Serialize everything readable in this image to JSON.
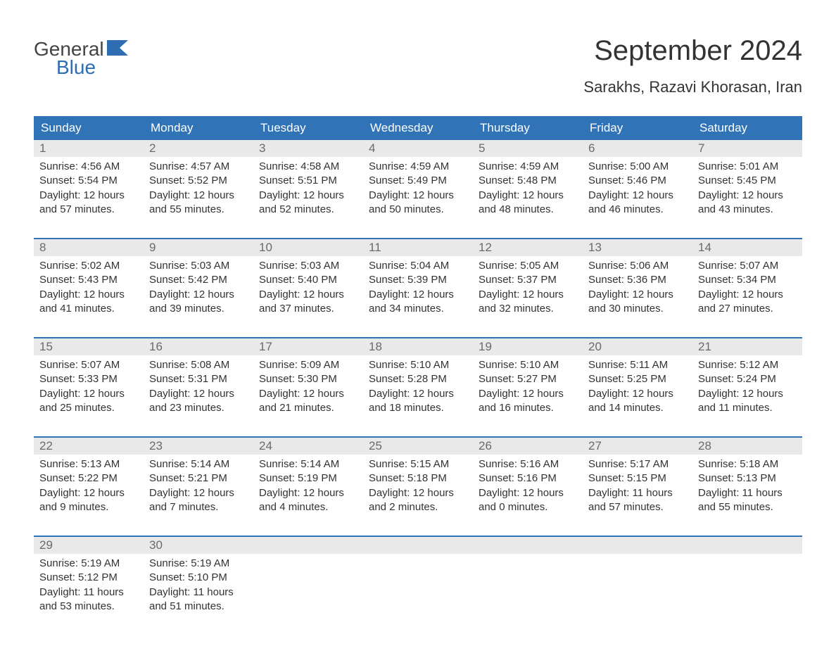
{
  "logo": {
    "top": "General",
    "bottom": "Blue",
    "top_color": "#444444",
    "bottom_color": "#2f6db2",
    "flag_color": "#2f6db2"
  },
  "title": "September 2024",
  "location": "Sarakhs, Razavi Khorasan, Iran",
  "colors": {
    "header_bg": "#3173b7",
    "header_text": "#ffffff",
    "date_bg": "#e9e9e9",
    "date_text": "#6a6a6a",
    "rule": "#3173b7",
    "body_text": "#333333",
    "background": "#ffffff"
  },
  "typography": {
    "title_fontsize": 40,
    "location_fontsize": 22,
    "dayheader_fontsize": 17,
    "date_fontsize": 17,
    "cell_fontsize": 15,
    "font_family": "Arial"
  },
  "day_names": [
    "Sunday",
    "Monday",
    "Tuesday",
    "Wednesday",
    "Thursday",
    "Friday",
    "Saturday"
  ],
  "weeks": [
    [
      {
        "date": "1",
        "sunrise": "Sunrise: 4:56 AM",
        "sunset": "Sunset: 5:54 PM",
        "daylight1": "Daylight: 12 hours",
        "daylight2": "and 57 minutes."
      },
      {
        "date": "2",
        "sunrise": "Sunrise: 4:57 AM",
        "sunset": "Sunset: 5:52 PM",
        "daylight1": "Daylight: 12 hours",
        "daylight2": "and 55 minutes."
      },
      {
        "date": "3",
        "sunrise": "Sunrise: 4:58 AM",
        "sunset": "Sunset: 5:51 PM",
        "daylight1": "Daylight: 12 hours",
        "daylight2": "and 52 minutes."
      },
      {
        "date": "4",
        "sunrise": "Sunrise: 4:59 AM",
        "sunset": "Sunset: 5:49 PM",
        "daylight1": "Daylight: 12 hours",
        "daylight2": "and 50 minutes."
      },
      {
        "date": "5",
        "sunrise": "Sunrise: 4:59 AM",
        "sunset": "Sunset: 5:48 PM",
        "daylight1": "Daylight: 12 hours",
        "daylight2": "and 48 minutes."
      },
      {
        "date": "6",
        "sunrise": "Sunrise: 5:00 AM",
        "sunset": "Sunset: 5:46 PM",
        "daylight1": "Daylight: 12 hours",
        "daylight2": "and 46 minutes."
      },
      {
        "date": "7",
        "sunrise": "Sunrise: 5:01 AM",
        "sunset": "Sunset: 5:45 PM",
        "daylight1": "Daylight: 12 hours",
        "daylight2": "and 43 minutes."
      }
    ],
    [
      {
        "date": "8",
        "sunrise": "Sunrise: 5:02 AM",
        "sunset": "Sunset: 5:43 PM",
        "daylight1": "Daylight: 12 hours",
        "daylight2": "and 41 minutes."
      },
      {
        "date": "9",
        "sunrise": "Sunrise: 5:03 AM",
        "sunset": "Sunset: 5:42 PM",
        "daylight1": "Daylight: 12 hours",
        "daylight2": "and 39 minutes."
      },
      {
        "date": "10",
        "sunrise": "Sunrise: 5:03 AM",
        "sunset": "Sunset: 5:40 PM",
        "daylight1": "Daylight: 12 hours",
        "daylight2": "and 37 minutes."
      },
      {
        "date": "11",
        "sunrise": "Sunrise: 5:04 AM",
        "sunset": "Sunset: 5:39 PM",
        "daylight1": "Daylight: 12 hours",
        "daylight2": "and 34 minutes."
      },
      {
        "date": "12",
        "sunrise": "Sunrise: 5:05 AM",
        "sunset": "Sunset: 5:37 PM",
        "daylight1": "Daylight: 12 hours",
        "daylight2": "and 32 minutes."
      },
      {
        "date": "13",
        "sunrise": "Sunrise: 5:06 AM",
        "sunset": "Sunset: 5:36 PM",
        "daylight1": "Daylight: 12 hours",
        "daylight2": "and 30 minutes."
      },
      {
        "date": "14",
        "sunrise": "Sunrise: 5:07 AM",
        "sunset": "Sunset: 5:34 PM",
        "daylight1": "Daylight: 12 hours",
        "daylight2": "and 27 minutes."
      }
    ],
    [
      {
        "date": "15",
        "sunrise": "Sunrise: 5:07 AM",
        "sunset": "Sunset: 5:33 PM",
        "daylight1": "Daylight: 12 hours",
        "daylight2": "and 25 minutes."
      },
      {
        "date": "16",
        "sunrise": "Sunrise: 5:08 AM",
        "sunset": "Sunset: 5:31 PM",
        "daylight1": "Daylight: 12 hours",
        "daylight2": "and 23 minutes."
      },
      {
        "date": "17",
        "sunrise": "Sunrise: 5:09 AM",
        "sunset": "Sunset: 5:30 PM",
        "daylight1": "Daylight: 12 hours",
        "daylight2": "and 21 minutes."
      },
      {
        "date": "18",
        "sunrise": "Sunrise: 5:10 AM",
        "sunset": "Sunset: 5:28 PM",
        "daylight1": "Daylight: 12 hours",
        "daylight2": "and 18 minutes."
      },
      {
        "date": "19",
        "sunrise": "Sunrise: 5:10 AM",
        "sunset": "Sunset: 5:27 PM",
        "daylight1": "Daylight: 12 hours",
        "daylight2": "and 16 minutes."
      },
      {
        "date": "20",
        "sunrise": "Sunrise: 5:11 AM",
        "sunset": "Sunset: 5:25 PM",
        "daylight1": "Daylight: 12 hours",
        "daylight2": "and 14 minutes."
      },
      {
        "date": "21",
        "sunrise": "Sunrise: 5:12 AM",
        "sunset": "Sunset: 5:24 PM",
        "daylight1": "Daylight: 12 hours",
        "daylight2": "and 11 minutes."
      }
    ],
    [
      {
        "date": "22",
        "sunrise": "Sunrise: 5:13 AM",
        "sunset": "Sunset: 5:22 PM",
        "daylight1": "Daylight: 12 hours",
        "daylight2": "and 9 minutes."
      },
      {
        "date": "23",
        "sunrise": "Sunrise: 5:14 AM",
        "sunset": "Sunset: 5:21 PM",
        "daylight1": "Daylight: 12 hours",
        "daylight2": "and 7 minutes."
      },
      {
        "date": "24",
        "sunrise": "Sunrise: 5:14 AM",
        "sunset": "Sunset: 5:19 PM",
        "daylight1": "Daylight: 12 hours",
        "daylight2": "and 4 minutes."
      },
      {
        "date": "25",
        "sunrise": "Sunrise: 5:15 AM",
        "sunset": "Sunset: 5:18 PM",
        "daylight1": "Daylight: 12 hours",
        "daylight2": "and 2 minutes."
      },
      {
        "date": "26",
        "sunrise": "Sunrise: 5:16 AM",
        "sunset": "Sunset: 5:16 PM",
        "daylight1": "Daylight: 12 hours",
        "daylight2": "and 0 minutes."
      },
      {
        "date": "27",
        "sunrise": "Sunrise: 5:17 AM",
        "sunset": "Sunset: 5:15 PM",
        "daylight1": "Daylight: 11 hours",
        "daylight2": "and 57 minutes."
      },
      {
        "date": "28",
        "sunrise": "Sunrise: 5:18 AM",
        "sunset": "Sunset: 5:13 PM",
        "daylight1": "Daylight: 11 hours",
        "daylight2": "and 55 minutes."
      }
    ],
    [
      {
        "date": "29",
        "sunrise": "Sunrise: 5:19 AM",
        "sunset": "Sunset: 5:12 PM",
        "daylight1": "Daylight: 11 hours",
        "daylight2": "and 53 minutes."
      },
      {
        "date": "30",
        "sunrise": "Sunrise: 5:19 AM",
        "sunset": "Sunset: 5:10 PM",
        "daylight1": "Daylight: 11 hours",
        "daylight2": "and 51 minutes."
      },
      {
        "date": "",
        "sunrise": "",
        "sunset": "",
        "daylight1": "",
        "daylight2": ""
      },
      {
        "date": "",
        "sunrise": "",
        "sunset": "",
        "daylight1": "",
        "daylight2": ""
      },
      {
        "date": "",
        "sunrise": "",
        "sunset": "",
        "daylight1": "",
        "daylight2": ""
      },
      {
        "date": "",
        "sunrise": "",
        "sunset": "",
        "daylight1": "",
        "daylight2": ""
      },
      {
        "date": "",
        "sunrise": "",
        "sunset": "",
        "daylight1": "",
        "daylight2": ""
      }
    ]
  ]
}
